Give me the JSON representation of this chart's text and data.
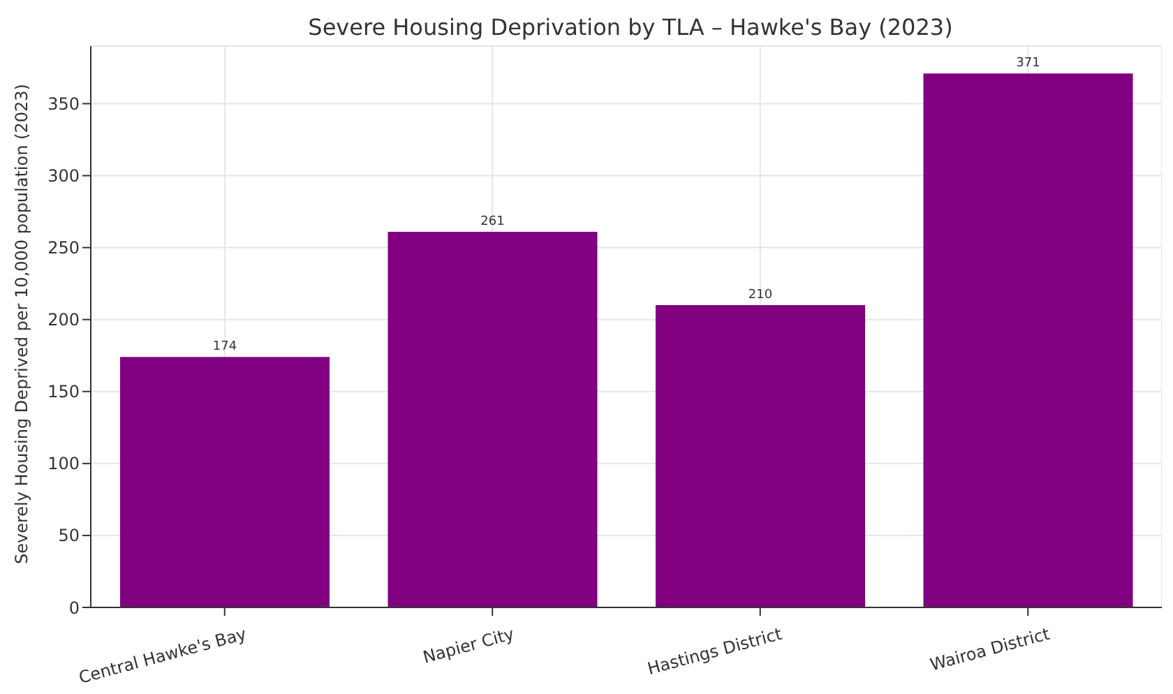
{
  "chart_data": {
    "type": "bar",
    "title": "Severe Housing Deprivation by TLA – Hawke's Bay (2023)",
    "ylabel": "Severely Housing Deprived per 10,000 population (2023)",
    "categories": [
      "Central Hawke's Bay",
      "Napier City",
      "Hastings District",
      "Wairoa District"
    ],
    "values": [
      174,
      261,
      210,
      371
    ],
    "color": "#800080",
    "ylim": [
      0,
      390
    ],
    "yticks": [
      0,
      50,
      100,
      150,
      200,
      250,
      300,
      350
    ],
    "grid": true,
    "data_labels": true
  }
}
